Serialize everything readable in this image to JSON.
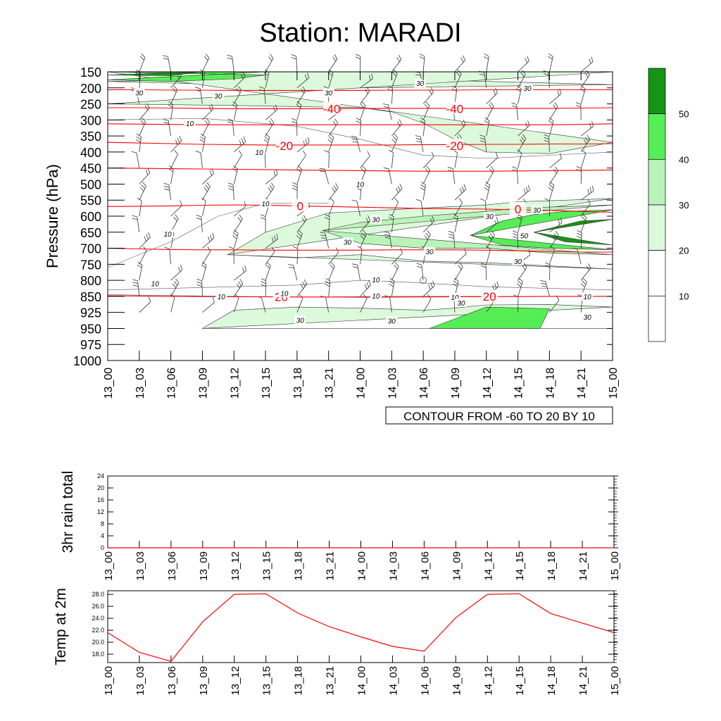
{
  "page": {
    "title": "Station: MARADI"
  },
  "chart_data": [
    {
      "type": "contour",
      "name": "cross-section",
      "ylabel": "Pressure (hPa)",
      "pressure_levels": [
        150,
        200,
        250,
        300,
        350,
        400,
        450,
        500,
        550,
        600,
        650,
        700,
        750,
        800,
        850,
        925,
        950,
        975,
        1000
      ],
      "time_labels": [
        "13_00",
        "13_03",
        "13_06",
        "13_09",
        "13_12",
        "13_15",
        "13_18",
        "13_21",
        "14_00",
        "14_03",
        "14_06",
        "14_09",
        "14_12",
        "14_15",
        "14_18",
        "14_21",
        "15_00"
      ],
      "wind_speed_fill": {
        "levels": [
          10,
          20,
          30,
          40,
          50
        ],
        "colors": [
          "#ffffff",
          "#ffffff",
          "#dcf9dc",
          "#b9f3b9",
          "#55ee55",
          "#169416"
        ],
        "labelbar_ticks": [
          "10",
          "20",
          "30",
          "40",
          "50"
        ]
      },
      "temperature_contours": {
        "note": "CONTOUR FROM -60 TO 20 BY 10",
        "color": "#ff0000",
        "lines": [
          {
            "value": -50,
            "p": [
              206,
              206,
              207,
              207,
              208,
              208,
              208,
              208,
              208,
              207,
              207,
              207,
              206,
              206,
              206,
              206,
              206
            ]
          },
          {
            "value": -40,
            "p": [
              262,
              262,
              263,
              264,
              265,
              265,
              265,
              265,
              264,
              264,
              264,
              264,
              264,
              264,
              264,
              263,
              262
            ]
          },
          {
            "value": -30,
            "p": [
              312,
              313,
              314,
              315,
              315,
              315,
              315,
              315,
              315,
              315,
              315,
              315,
              315,
              315,
              315,
              314,
              312
            ]
          },
          {
            "value": -20,
            "p": [
              370,
              372,
              374,
              376,
              377,
              378,
              378,
              378,
              378,
              378,
              377,
              377,
              376,
              376,
              375,
              375,
              374
            ]
          },
          {
            "value": -10,
            "p": [
              450,
              451,
              452,
              453,
              454,
              455,
              456,
              457,
              458,
              459,
              460,
              460,
              460,
              459,
              458,
              457,
              456
            ]
          },
          {
            "value": 0,
            "p": [
              570,
              569,
              568,
              566,
              565,
              566,
              568,
              570,
              572,
              574,
              576,
              577,
              578,
              580,
              582,
              585,
              588
            ]
          },
          {
            "value": 10,
            "p": [
              700,
              702,
              704,
              705,
              705,
              706,
              706,
              706,
              706,
              705,
              705,
              705,
              706,
              708,
              710,
              712,
              712
            ]
          },
          {
            "value": 20,
            "p": [
              848,
              849,
              850,
              851,
              852,
              852,
              853,
              853,
              852,
              851,
              851,
              851,
              851,
              851,
              850,
              850,
              850
            ]
          }
        ],
        "labels": [
          {
            "text": "-40",
            "t": 7.1,
            "p": 265
          },
          {
            "text": "-40",
            "t": 11.0,
            "p": 265
          },
          {
            "text": "-20",
            "t": 5.6,
            "p": 380
          },
          {
            "text": "-20",
            "t": 11.0,
            "p": 380
          },
          {
            "text": "0",
            "t": 6.1,
            "p": 568
          },
          {
            "text": "0",
            "t": 13.0,
            "p": 578
          },
          {
            "text": "20",
            "t": 5.5,
            "p": 852
          },
          {
            "text": "20",
            "t": 12.1,
            "p": 851
          }
        ]
      },
      "speed_contour_labels": [
        {
          "text": "30",
          "t": 1.0,
          "p": 215
        },
        {
          "text": "30",
          "t": 3.5,
          "p": 225
        },
        {
          "text": "30",
          "t": 7.0,
          "p": 215
        },
        {
          "text": "30",
          "t": 9.9,
          "p": 185
        },
        {
          "text": "30",
          "t": 13.3,
          "p": 201
        },
        {
          "text": "10",
          "t": 2.6,
          "p": 310
        },
        {
          "text": "10",
          "t": 4.8,
          "p": 400
        },
        {
          "text": "10",
          "t": 8.0,
          "p": 500
        },
        {
          "text": "10",
          "t": 5.0,
          "p": 560
        },
        {
          "text": "10",
          "t": 1.9,
          "p": 655
        },
        {
          "text": "30",
          "t": 8.5,
          "p": 610
        },
        {
          "text": "30",
          "t": 7.6,
          "p": 680
        },
        {
          "text": "30",
          "t": 12.1,
          "p": 600
        },
        {
          "text": "30",
          "t": 13.6,
          "p": 580
        },
        {
          "text": "50",
          "t": 13.2,
          "p": 660
        },
        {
          "text": "30",
          "t": 10.2,
          "p": 710
        },
        {
          "text": "30",
          "t": 13.0,
          "p": 740
        },
        {
          "text": "10",
          "t": 1.5,
          "p": 810
        },
        {
          "text": "10",
          "t": 3.6,
          "p": 850
        },
        {
          "text": "10",
          "t": 5.6,
          "p": 840
        },
        {
          "text": "10",
          "t": 8.5,
          "p": 798
        },
        {
          "text": "10",
          "t": 8.5,
          "p": 848
        },
        {
          "text": "10",
          "t": 11.0,
          "p": 853
        },
        {
          "text": "30",
          "t": 11.2,
          "p": 880
        },
        {
          "text": "10",
          "t": 15.2,
          "p": 851
        },
        {
          "text": "30",
          "t": 6.1,
          "p": 937
        },
        {
          "text": "30",
          "t": 9.0,
          "p": 938
        },
        {
          "text": "30",
          "t": 15.2,
          "p": 932
        }
      ]
    },
    {
      "type": "line",
      "name": "3hr-rain-total",
      "ylabel": "3hr rain total",
      "ylim": [
        0,
        24
      ],
      "yticks": [
        "0",
        "4",
        "8",
        "12",
        "16",
        "20",
        "24"
      ],
      "x": [
        "13_00",
        "13_03",
        "13_06",
        "13_09",
        "13_12",
        "13_15",
        "13_18",
        "13_21",
        "14_00",
        "14_03",
        "14_06",
        "14_09",
        "14_12",
        "14_15",
        "14_18",
        "14_21",
        "15_00"
      ],
      "values": [
        0,
        0,
        0,
        0,
        0,
        0,
        0,
        0,
        0,
        0,
        0,
        0,
        0,
        0,
        0,
        0,
        0
      ],
      "line_color": "#ff0000"
    },
    {
      "type": "line",
      "name": "temp-at-2m",
      "ylabel": "Temp at 2m",
      "ylim": [
        16.6,
        28.6
      ],
      "yticks": [
        "18.0",
        "20.0",
        "22.0",
        "24.0",
        "26.0",
        "28.0"
      ],
      "x": [
        "13_00",
        "13_03",
        "13_06",
        "13_09",
        "13_12",
        "13_15",
        "13_18",
        "13_21",
        "14_00",
        "14_03",
        "14_06",
        "14_09",
        "14_12",
        "14_15",
        "14_18",
        "14_21",
        "15_00"
      ],
      "values": [
        21.6,
        18.3,
        16.8,
        23.4,
        28.0,
        28.1,
        24.9,
        22.6,
        20.9,
        19.3,
        18.5,
        24.1,
        28.0,
        28.1,
        24.8,
        23.2,
        21.6
      ],
      "line_color": "#ff0000"
    }
  ]
}
